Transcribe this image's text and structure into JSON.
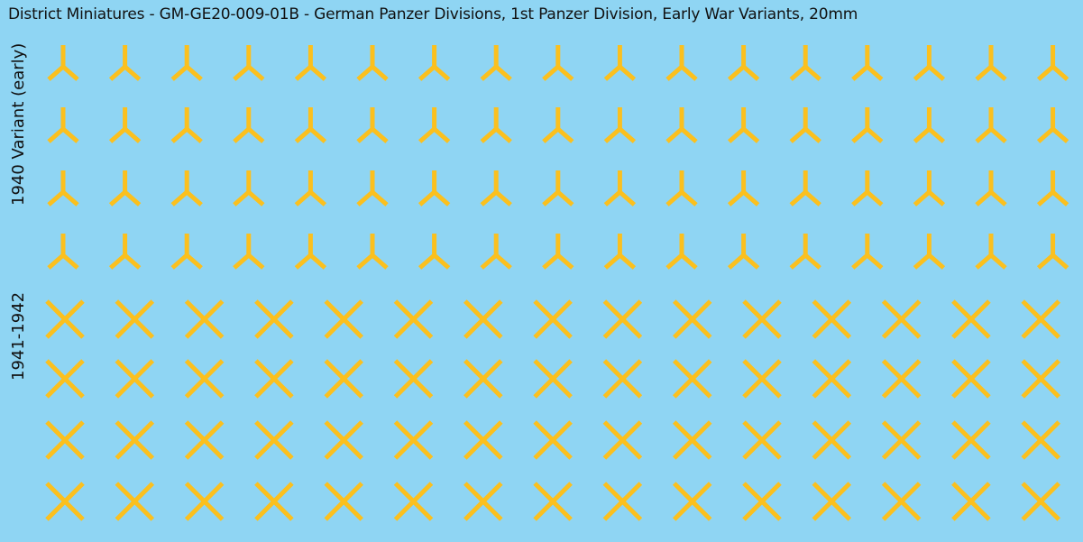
{
  "title": "District Miniatures - GM-GE20-009-01B - German Panzer Divisions, 1st Panzer Division, Early War Variants, 20mm",
  "sections": [
    {
      "label": "1940 Variant (early)",
      "symbol": "inverted-y",
      "rows": 4,
      "cols": 17
    },
    {
      "label": "1941-1942",
      "symbol": "x-cross",
      "rows": 4,
      "cols": 15
    }
  ],
  "colors": {
    "background": "#8fd5f3",
    "decal": "#fbc01e",
    "text": "#111111"
  }
}
